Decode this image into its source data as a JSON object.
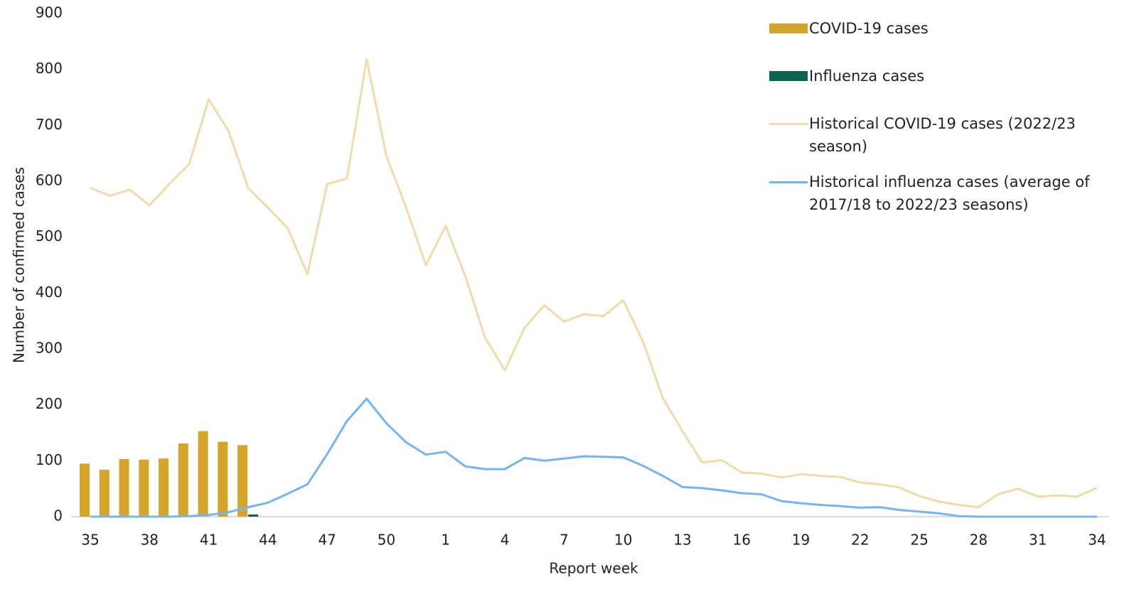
{
  "chart_data": {
    "type": "bar",
    "y_label": "Number of confirmed cases",
    "x_label": "Report week",
    "categories": [
      35,
      null,
      null,
      38,
      null,
      null,
      41,
      null,
      null,
      44,
      null,
      null,
      47,
      null,
      null,
      50,
      null,
      null,
      1,
      null,
      null,
      4,
      null,
      null,
      7,
      null,
      null,
      10,
      null,
      null,
      13,
      null,
      null,
      16,
      null,
      null,
      19,
      null,
      null,
      22,
      null,
      null,
      25,
      null,
      null,
      28,
      null,
      null,
      31,
      null,
      null,
      34
    ],
    "ylim": [
      0,
      900
    ],
    "yticks": [
      0,
      100,
      200,
      300,
      400,
      500,
      600,
      700,
      800,
      900
    ],
    "grid": false,
    "legend": "right",
    "series": [
      {
        "name": "COVID-19 cases",
        "kind": "bar",
        "color": "#d4a52a",
        "values": [
          95,
          84,
          103,
          102,
          104,
          131,
          153,
          134,
          128,
          null,
          null,
          null,
          null,
          null,
          null,
          null,
          null,
          null,
          null,
          null,
          null,
          null,
          null,
          null,
          null,
          null,
          null,
          null,
          null,
          null,
          null,
          null,
          null,
          null,
          null,
          null,
          null,
          null,
          null,
          null,
          null,
          null,
          null,
          null,
          null,
          null,
          null,
          null,
          null,
          null,
          null,
          null
        ]
      },
      {
        "name": "Influenza cases",
        "kind": "bar",
        "color": "#0b6350",
        "values": [
          0,
          0,
          0,
          0,
          0,
          0,
          0,
          0,
          4,
          null,
          null,
          null,
          null,
          null,
          null,
          null,
          null,
          null,
          null,
          null,
          null,
          null,
          null,
          null,
          null,
          null,
          null,
          null,
          null,
          null,
          null,
          null,
          null,
          null,
          null,
          null,
          null,
          null,
          null,
          null,
          null,
          null,
          null,
          null,
          null,
          null,
          null,
          null,
          null,
          null,
          null,
          null
        ]
      },
      {
        "name": "Historical COVID-19 cases (2022/23 season)",
        "kind": "line",
        "color": "#efdcaa",
        "values": [
          588,
          574,
          585,
          557,
          595,
          630,
          746,
          690,
          588,
          553,
          516,
          434,
          595,
          605,
          818,
          645,
          553,
          450,
          520,
          430,
          320,
          262,
          338,
          378,
          349,
          362,
          359,
          387,
          313,
          212,
          153,
          97,
          101,
          79,
          77,
          70,
          76,
          73,
          71,
          61,
          58,
          52,
          37,
          27,
          21,
          17,
          40,
          50,
          36,
          38,
          36,
          52
        ]
      },
      {
        "name": "Historical influenza cases (average of 2017/18 to 2022/23 seasons)",
        "kind": "line",
        "color": "#74b4f5",
        "values": [
          0,
          0,
          0,
          0,
          0,
          1,
          3,
          8,
          17,
          25,
          41,
          58,
          112,
          171,
          211,
          167,
          133,
          111,
          116,
          90,
          85,
          85,
          105,
          100,
          104,
          108,
          107,
          106,
          91,
          73,
          53,
          51,
          47,
          42,
          40,
          28,
          24,
          21,
          19,
          16,
          17,
          12,
          9,
          6,
          1,
          0,
          0,
          0,
          0,
          0,
          0,
          0
        ]
      }
    ]
  }
}
